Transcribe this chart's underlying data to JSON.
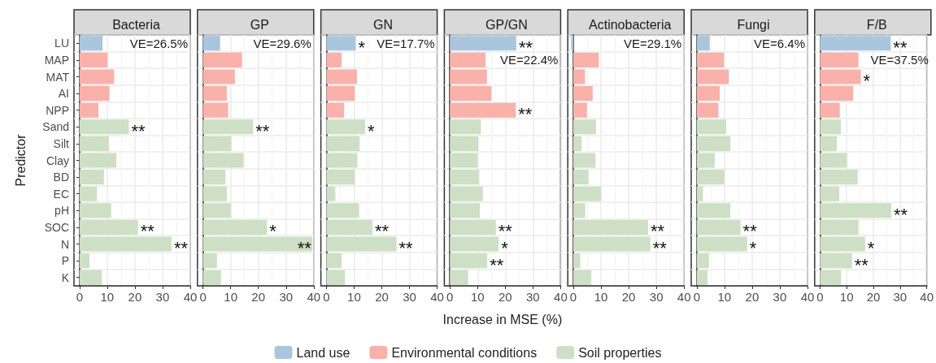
{
  "chart_data": [
    {
      "type": "bar",
      "orientation": "horizontal",
      "title": "Bacteria",
      "ylabel": "Predictor",
      "categories": [
        "LU",
        "MAP",
        "MAT",
        "AI",
        "NPP",
        "Sand",
        "Silt",
        "Clay",
        "BD",
        "EC",
        "pH",
        "SOC",
        "N",
        "P",
        "K"
      ],
      "series": [
        {
          "color": "#a9c6de",
          "values": [
            8.3,
            null,
            null,
            null,
            null,
            null,
            null,
            null,
            null,
            null,
            null,
            null,
            null,
            null,
            null
          ]
        },
        {
          "color": "#f9b1a9",
          "values": [
            null,
            10.1,
            12.5,
            10.8,
            6.8,
            null,
            null,
            null,
            null,
            null,
            null,
            null,
            null,
            null,
            null
          ]
        },
        {
          "color": "#cddfc4",
          "values": [
            null,
            null,
            null,
            null,
            null,
            17.8,
            10.6,
            13.3,
            8.8,
            6.3,
            11.4,
            21.1,
            33.2,
            3.6,
            8.1
          ]
        }
      ],
      "xlim": [
        -2,
        40
      ],
      "xticks": [
        0,
        10,
        20,
        30,
        40
      ],
      "grid": true,
      "legend": false,
      "annotations": [
        "VE=26.5%",
        {
          "text": "**",
          "x": 17.8,
          "y": "Sand"
        },
        {
          "text": "**",
          "x": 21.1,
          "y": "SOC"
        },
        {
          "text": "**",
          "x": 33.2,
          "y": "N"
        }
      ]
    },
    {
      "type": "bar",
      "orientation": "horizontal",
      "title": "GP",
      "categories": [
        "LU",
        "MAP",
        "MAT",
        "AI",
        "NPP",
        "Sand",
        "Silt",
        "Clay",
        "BD",
        "EC",
        "pH",
        "SOC",
        "N",
        "P",
        "K"
      ],
      "series": [
        {
          "color": "#a9c6de",
          "values": [
            6.2,
            null,
            null,
            null,
            null,
            null,
            null,
            null,
            null,
            null,
            null,
            null,
            null,
            null,
            null
          ]
        },
        {
          "color": "#f9b1a9",
          "values": [
            null,
            14.1,
            11.5,
            8.6,
            9.1,
            null,
            null,
            null,
            null,
            null,
            null,
            null,
            null,
            null,
            null
          ]
        },
        {
          "color": "#cddfc4",
          "values": [
            null,
            null,
            null,
            null,
            null,
            18.1,
            10.2,
            14.7,
            8.1,
            8.6,
            10.1,
            23.1,
            39.5,
            5.0,
            6.5
          ]
        }
      ],
      "xlim": [
        -2,
        40
      ],
      "xticks": [
        0,
        10,
        20,
        30,
        40
      ],
      "grid": true,
      "legend": false,
      "tick_labels": "x",
      "annotations": [
        "VE=29.6%",
        {
          "text": "**",
          "x": 18.1,
          "y": "Sand"
        },
        {
          "text": "*",
          "x": 23.1,
          "y": "SOC"
        },
        {
          "text": "**",
          "x": 39.5,
          "y": "N"
        }
      ]
    },
    {
      "type": "bar",
      "orientation": "horizontal",
      "title": "GN",
      "categories": [
        "LU",
        "MAP",
        "MAT",
        "AI",
        "NPP",
        "Sand",
        "Silt",
        "Clay",
        "BD",
        "EC",
        "pH",
        "SOC",
        "N",
        "P",
        "K"
      ],
      "series": [
        {
          "color": "#a9c6de",
          "values": [
            10.6,
            null,
            null,
            null,
            null,
            null,
            null,
            null,
            null,
            null,
            null,
            null,
            null,
            null,
            null
          ]
        },
        {
          "color": "#f9b1a9",
          "values": [
            null,
            5.5,
            11.0,
            10.2,
            6.4,
            null,
            null,
            null,
            null,
            null,
            null,
            null,
            null,
            null,
            null
          ]
        },
        {
          "color": "#cddfc4",
          "values": [
            null,
            null,
            null,
            null,
            null,
            14.0,
            12.0,
            11.2,
            10.2,
            3.2,
            11.8,
            16.6,
            25.3,
            5.5,
            6.7
          ]
        }
      ],
      "xlim": [
        -2,
        40
      ],
      "xticks": [
        0,
        10,
        20,
        30,
        40
      ],
      "grid": true,
      "legend": false,
      "tick_labels": "x",
      "annotations": [
        "VE=17.7%",
        {
          "text": "*",
          "x": 10.6,
          "y": "LU"
        },
        {
          "text": "*",
          "x": 14.0,
          "y": "Sand"
        },
        {
          "text": "**",
          "x": 16.6,
          "y": "SOC"
        },
        {
          "text": "**",
          "x": 25.3,
          "y": "N"
        }
      ]
    },
    {
      "type": "bar",
      "orientation": "horizontal",
      "title": "GP/GN",
      "xlabel": "Increase in MSE (%)",
      "categories": [
        "LU",
        "MAP",
        "MAT",
        "AI",
        "NPP",
        "Sand",
        "Silt",
        "Clay",
        "BD",
        "EC",
        "pH",
        "SOC",
        "N",
        "P",
        "K"
      ],
      "series": [
        {
          "name": "Land use",
          "color": "#a9c6de",
          "values": [
            24.0,
            null,
            null,
            null,
            null,
            null,
            null,
            null,
            null,
            null,
            null,
            null,
            null,
            null,
            null
          ]
        },
        {
          "name": "Environmental conditions",
          "color": "#f9b1a9",
          "values": [
            null,
            12.9,
            13.4,
            15.0,
            23.8,
            null,
            null,
            null,
            null,
            null,
            null,
            null,
            null,
            null,
            null
          ]
        },
        {
          "name": "Soil properties",
          "color": "#cddfc4",
          "values": [
            null,
            null,
            null,
            null,
            null,
            11.2,
            10.2,
            10.0,
            10.6,
            11.9,
            10.8,
            16.6,
            17.6,
            13.5,
            6.6
          ]
        }
      ],
      "xlim": [
        -2,
        40
      ],
      "xticks": [
        0,
        10,
        20,
        30,
        40
      ],
      "grid": true,
      "legend": "bottom",
      "tick_labels": "x",
      "annotations": [
        "VE=22.4%",
        {
          "text": "**",
          "x": 24.0,
          "y": "LU"
        },
        {
          "text": "**",
          "x": 23.8,
          "y": "NPP"
        },
        {
          "text": "**",
          "x": 16.6,
          "y": "SOC"
        },
        {
          "text": "*",
          "x": 17.6,
          "y": "N"
        },
        {
          "text": "**",
          "x": 13.5,
          "y": "P"
        }
      ]
    },
    {
      "type": "bar",
      "orientation": "horizontal",
      "title": "Actinobacteria",
      "categories": [
        "LU",
        "MAP",
        "MAT",
        "AI",
        "NPP",
        "Sand",
        "Silt",
        "Clay",
        "BD",
        "EC",
        "pH",
        "SOC",
        "N",
        "P",
        "K"
      ],
      "series": [
        {
          "color": "#a9c6de",
          "values": [
            -0.8,
            null,
            null,
            null,
            null,
            null,
            null,
            null,
            null,
            null,
            null,
            null,
            null,
            null,
            null
          ]
        },
        {
          "color": "#f9b1a9",
          "values": [
            null,
            9.2,
            4.2,
            7.0,
            4.9,
            null,
            null,
            null,
            null,
            null,
            null,
            null,
            null,
            null,
            null
          ]
        },
        {
          "color": "#cddfc4",
          "values": [
            null,
            null,
            null,
            null,
            null,
            8.2,
            3.0,
            8.0,
            5.5,
            10.0,
            4.3,
            27.0,
            27.8,
            2.5,
            6.5
          ]
        }
      ],
      "xlim": [
        -2,
        40
      ],
      "xticks": [
        0,
        10,
        20,
        30,
        40
      ],
      "grid": true,
      "legend": false,
      "tick_labels": "x",
      "annotations": [
        "VE=29.1%",
        {
          "text": "**",
          "x": 27.0,
          "y": "SOC"
        },
        {
          "text": "**",
          "x": 27.8,
          "y": "N"
        }
      ]
    },
    {
      "type": "bar",
      "orientation": "horizontal",
      "title": "Fungi",
      "categories": [
        "LU",
        "MAP",
        "MAT",
        "AI",
        "NPP",
        "Sand",
        "Silt",
        "Clay",
        "BD",
        "EC",
        "pH",
        "SOC",
        "N",
        "P",
        "K"
      ],
      "series": [
        {
          "color": "#a9c6de",
          "values": [
            4.7,
            null,
            null,
            null,
            null,
            null,
            null,
            null,
            null,
            null,
            null,
            null,
            null,
            null,
            null
          ]
        },
        {
          "color": "#f9b1a9",
          "values": [
            null,
            9.8,
            11.6,
            8.3,
            7.8,
            null,
            null,
            null,
            null,
            null,
            null,
            null,
            null,
            null,
            null
          ]
        },
        {
          "color": "#cddfc4",
          "values": [
            null,
            null,
            null,
            null,
            null,
            10.6,
            12.2,
            6.5,
            10.0,
            2.2,
            12.1,
            15.8,
            18.2,
            4.4,
            3.9
          ]
        }
      ],
      "xlim": [
        -2,
        40
      ],
      "xticks": [
        0,
        10,
        20,
        30,
        40
      ],
      "grid": true,
      "legend": false,
      "tick_labels": "x",
      "annotations": [
        "VE=6.4%",
        {
          "text": "**",
          "x": 15.8,
          "y": "SOC"
        },
        {
          "text": "*",
          "x": 18.2,
          "y": "N"
        }
      ]
    },
    {
      "type": "bar",
      "orientation": "horizontal",
      "title": "F/B",
      "categories": [
        "LU",
        "MAP",
        "MAT",
        "AI",
        "NPP",
        "Sand",
        "Silt",
        "Clay",
        "BD",
        "EC",
        "pH",
        "SOC",
        "N",
        "P",
        "K"
      ],
      "series": [
        {
          "color": "#a9c6de",
          "values": [
            26.5,
            null,
            null,
            null,
            null,
            null,
            null,
            null,
            null,
            null,
            null,
            null,
            null,
            null,
            null
          ]
        },
        {
          "color": "#f9b1a9",
          "values": [
            null,
            14.4,
            15.3,
            12.4,
            7.4,
            null,
            null,
            null,
            null,
            null,
            null,
            null,
            null,
            null,
            null
          ]
        },
        {
          "color": "#cddfc4",
          "values": [
            null,
            null,
            null,
            null,
            null,
            7.8,
            6.3,
            10.2,
            14.1,
            7.2,
            26.7,
            14.4,
            16.9,
            12.0,
            7.9
          ]
        }
      ],
      "xlim": [
        -2,
        40
      ],
      "xticks": [
        0,
        10,
        20,
        30,
        40
      ],
      "grid": true,
      "legend": false,
      "tick_labels": "x",
      "annotations": [
        "VE=37.5%",
        {
          "text": "**",
          "x": 26.5,
          "y": "LU"
        },
        {
          "text": "*",
          "x": 15.3,
          "y": "MAT"
        },
        {
          "text": "**",
          "x": 26.7,
          "y": "pH"
        },
        {
          "text": "*",
          "x": 16.9,
          "y": "N"
        },
        {
          "text": "**",
          "x": 12.0,
          "y": "P"
        }
      ]
    }
  ]
}
